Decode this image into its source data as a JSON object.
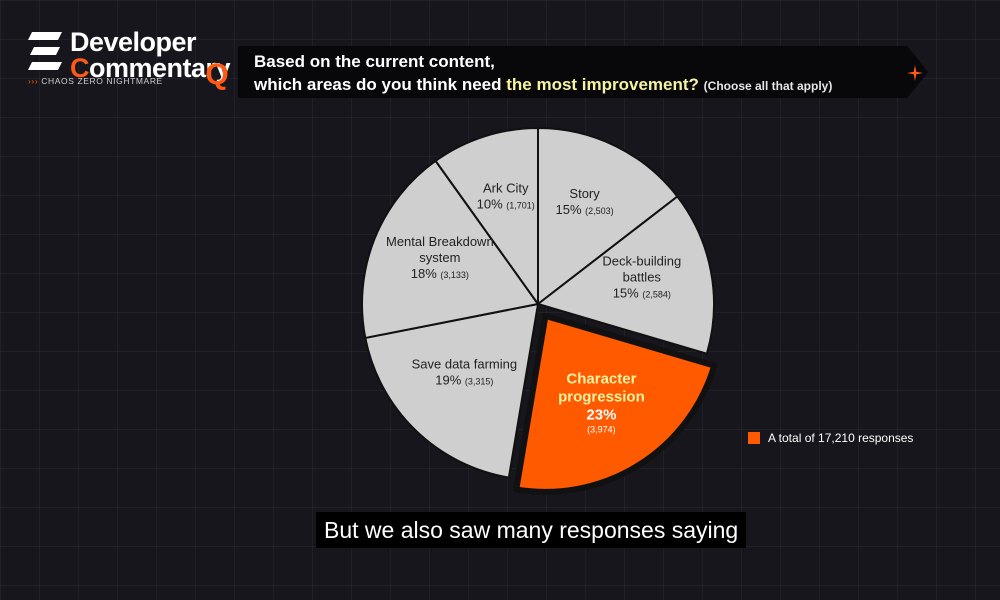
{
  "branding": {
    "logo_line1": "Developer",
    "logo_line2": "Commentary",
    "logo_sub_arrows": "›››",
    "logo_sub": "CHAOS ZERO NIGHTMARE",
    "logo_letter": "Q"
  },
  "question": {
    "line1": "Based on the current content,",
    "line2_prefix": "which areas do you think need",
    "line2_highlight": "the most improvement?",
    "note": "(Choose all that apply)"
  },
  "colors": {
    "accent": "#ff5a00",
    "slice_default": "#cfcfcf",
    "highlight_text": "#f7f3a0"
  },
  "chart_data": {
    "type": "pie",
    "total_label": "A total of 17,210 responses",
    "slices": [
      {
        "label": "Story",
        "percent_label": "15%",
        "count_label": "(2,503)",
        "value": 2503,
        "highlighted": false
      },
      {
        "label": "Deck-building battles",
        "percent_label": "15%",
        "count_label": "(2,584)",
        "value": 2584,
        "highlighted": false
      },
      {
        "label": "Character progression",
        "percent_label": "23%",
        "count_label": "(3,974)",
        "value": 3974,
        "highlighted": true
      },
      {
        "label": "Save data farming",
        "percent_label": "19%",
        "count_label": "(3,315)",
        "value": 3315,
        "highlighted": false
      },
      {
        "label": "Mental Breakdown system",
        "percent_label": "18%",
        "count_label": "(3,133)",
        "value": 3133,
        "highlighted": false
      },
      {
        "label": "Ark City",
        "percent_label": "10%",
        "count_label": "(1,701)",
        "value": 1701,
        "highlighted": false
      }
    ]
  },
  "caption": "But we also saw many responses saying"
}
